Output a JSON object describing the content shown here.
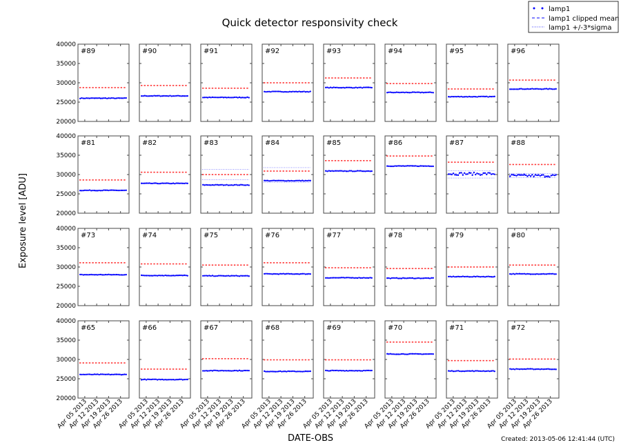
{
  "chart_data": {
    "type": "scatter",
    "title": "Quick detector responsivity check",
    "xlabel": "DATE-OBS",
    "ylabel": "Exposure level [ADU]",
    "footer": "Created: 2013-05-06 12:41:44 (UTC)",
    "ylim": [
      20000,
      40000
    ],
    "yticks": [
      "20000",
      "25000",
      "30000",
      "35000",
      "40000"
    ],
    "xlim": [
      "2013-04-01",
      "2013-05-01"
    ],
    "xticks": [
      "Apr 05 2013",
      "Apr 12 2013",
      "Apr 19 2013",
      "Apr 26 2013"
    ],
    "grid": false,
    "legend": {
      "placement": "top-right",
      "entries": [
        {
          "label": "lamp1",
          "style": "points",
          "color": "#0000ff"
        },
        {
          "label": "lamp1 clipped mean",
          "style": "dashed",
          "color": "#0000ff"
        },
        {
          "label": "lamp1 +/-3*sigma",
          "style": "dotted",
          "color": "#0000ff"
        }
      ]
    },
    "colors": {
      "lamp1": "#0000ff",
      "upper_series": "#ff0000"
    },
    "panels": [
      {
        "label": "#89",
        "lamp1": 26000,
        "red": 28750
      },
      {
        "label": "#90",
        "lamp1": 26600,
        "red": 29300
      },
      {
        "label": "#91",
        "lamp1": 26200,
        "red": 28600
      },
      {
        "label": "#92",
        "lamp1": 27700,
        "red": 30000
      },
      {
        "label": "#93",
        "lamp1": 28750,
        "red": 31250
      },
      {
        "label": "#94",
        "lamp1": 27500,
        "red": 29800
      },
      {
        "label": "#95",
        "lamp1": 26400,
        "red": 28400
      },
      {
        "label": "#96",
        "lamp1": 28400,
        "red": 30700
      },
      {
        "label": "#81",
        "lamp1": 25900,
        "red": 28600
      },
      {
        "label": "#82",
        "lamp1": 27700,
        "red": 30600
      },
      {
        "label": "#83",
        "lamp1": 27300,
        "red": 30000,
        "sigma": [
          28700,
          31300
        ]
      },
      {
        "label": "#84",
        "lamp1": 28400,
        "red": 30900,
        "sigma": [
          28000,
          31800
        ]
      },
      {
        "label": "#85",
        "lamp1": 30900,
        "red": 33600
      },
      {
        "label": "#86",
        "lamp1": 32200,
        "red": 34800
      },
      {
        "label": "#87",
        "lamp1": 30200,
        "red": 33200,
        "sigma": [
          29100,
          31000
        ]
      },
      {
        "label": "#88",
        "lamp1": 29700,
        "red": 32600,
        "sigma": [
          29200,
          30300
        ]
      },
      {
        "label": "#73",
        "lamp1": 28000,
        "red": 31100
      },
      {
        "label": "#74",
        "lamp1": 27800,
        "red": 30800
      },
      {
        "label": "#75",
        "lamp1": 27700,
        "red": 30500
      },
      {
        "label": "#76",
        "lamp1": 28200,
        "red": 31100
      },
      {
        "label": "#77",
        "lamp1": 27200,
        "red": 29800
      },
      {
        "label": "#78",
        "lamp1": 27100,
        "red": 29600
      },
      {
        "label": "#79",
        "lamp1": 27500,
        "red": 30000
      },
      {
        "label": "#80",
        "lamp1": 28200,
        "red": 30500
      },
      {
        "label": "#65",
        "lamp1": 26100,
        "red": 29100
      },
      {
        "label": "#66",
        "lamp1": 24800,
        "red": 27500
      },
      {
        "label": "#67",
        "lamp1": 27100,
        "red": 30200
      },
      {
        "label": "#68",
        "lamp1": 26900,
        "red": 29900
      },
      {
        "label": "#69",
        "lamp1": 27100,
        "red": 29900
      },
      {
        "label": "#70",
        "lamp1": 31400,
        "red": 34500
      },
      {
        "label": "#71",
        "lamp1": 27000,
        "red": 29700
      },
      {
        "label": "#72",
        "lamp1": 27500,
        "red": 30100
      }
    ]
  }
}
